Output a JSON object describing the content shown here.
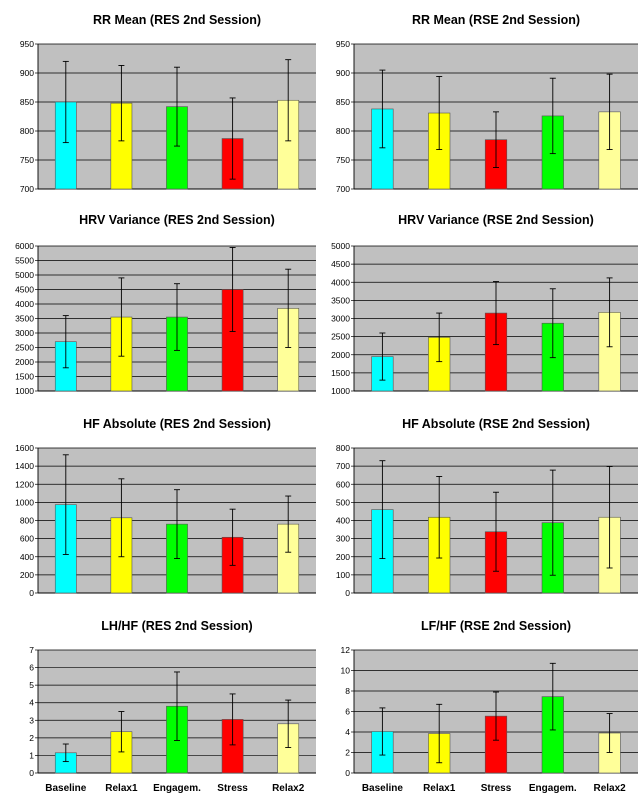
{
  "chart_data": [
    {
      "type": "bar",
      "title": "RR Mean (RES 2nd Session)",
      "categories": [
        "Baseline",
        "Relax1",
        "Engagem.",
        "Stress",
        "Relax2"
      ],
      "values": [
        850,
        848,
        842,
        787,
        853
      ],
      "error": [
        70,
        65,
        68,
        70,
        70
      ],
      "colors": [
        "#00ffff",
        "#ffff00",
        "#00ff00",
        "#ff0000",
        "#ffff99"
      ],
      "ylim": [
        700,
        950
      ],
      "yticks": [
        700,
        750,
        800,
        850,
        900,
        950
      ],
      "show_categories": false
    },
    {
      "type": "bar",
      "title": "RR Mean (RSE 2nd Session)",
      "categories": [
        "Baseline",
        "Relax1",
        "Stress",
        "Engagem.",
        "Relax2"
      ],
      "values": [
        838,
        831,
        785,
        826,
        833
      ],
      "error": [
        67,
        63,
        48,
        65,
        65
      ],
      "colors": [
        "#00ffff",
        "#ffff00",
        "#ff0000",
        "#00ff00",
        "#ffff99"
      ],
      "ylim": [
        700,
        950
      ],
      "yticks": [
        700,
        750,
        800,
        850,
        900,
        950
      ],
      "show_categories": false
    },
    {
      "type": "bar",
      "title": "HRV Variance (RES 2nd Session)",
      "categories": [
        "Baseline",
        "Relax1",
        "Engagem.",
        "Stress",
        "Relax2"
      ],
      "values": [
        2700,
        3550,
        3550,
        4500,
        3850
      ],
      "error": [
        900,
        1350,
        1150,
        1450,
        1350
      ],
      "colors": [
        "#00ffff",
        "#ffff00",
        "#00ff00",
        "#ff0000",
        "#ffff99"
      ],
      "ylim": [
        1000,
        6000
      ],
      "yticks": [
        1000,
        1500,
        2000,
        2500,
        3000,
        3500,
        4000,
        4500,
        5000,
        5500,
        6000
      ],
      "show_categories": false
    },
    {
      "type": "bar",
      "title": "HRV Variance (RSE 2nd Session)",
      "categories": [
        "Baseline",
        "Relax1",
        "Stress",
        "Engagem.",
        "Relax2"
      ],
      "values": [
        1950,
        2480,
        3150,
        2870,
        3170
      ],
      "error": [
        650,
        670,
        870,
        950,
        950
      ],
      "colors": [
        "#00ffff",
        "#ffff00",
        "#ff0000",
        "#00ff00",
        "#ffff99"
      ],
      "ylim": [
        1000,
        5000
      ],
      "yticks": [
        1000,
        1500,
        2000,
        2500,
        3000,
        3500,
        4000,
        4500,
        5000
      ],
      "show_categories": false
    },
    {
      "type": "bar",
      "title": "HF Absolute (RES 2nd Session)",
      "categories": [
        "Baseline",
        "Relax1",
        "Engagem.",
        "Stress",
        "Relax2"
      ],
      "values": [
        975,
        830,
        760,
        615,
        760
      ],
      "error": [
        550,
        430,
        380,
        310,
        310
      ],
      "colors": [
        "#00ffff",
        "#ffff00",
        "#00ff00",
        "#ff0000",
        "#ffff99"
      ],
      "ylim": [
        0,
        1600
      ],
      "yticks": [
        0,
        200,
        400,
        600,
        800,
        1000,
        1200,
        1400,
        1600
      ],
      "show_categories": false
    },
    {
      "type": "bar",
      "title": "HF Absolute (RSE 2nd Session)",
      "categories": [
        "Baseline",
        "Relax1",
        "Stress",
        "Engagem.",
        "Relax2"
      ],
      "values": [
        460,
        418,
        338,
        388,
        418
      ],
      "error": [
        270,
        225,
        218,
        290,
        280
      ],
      "colors": [
        "#00ffff",
        "#ffff00",
        "#ff0000",
        "#00ff00",
        "#ffff99"
      ],
      "ylim": [
        0,
        800
      ],
      "yticks": [
        0,
        100,
        200,
        300,
        400,
        500,
        600,
        700,
        800
      ],
      "show_categories": false
    },
    {
      "type": "bar",
      "title": "LH/HF (RES 2nd Session)",
      "categories": [
        "Baseline",
        "Relax1",
        "Engagem.",
        "Stress",
        "Relax2"
      ],
      "values": [
        1.15,
        2.35,
        3.8,
        3.05,
        2.8
      ],
      "error": [
        0.5,
        1.15,
        1.95,
        1.45,
        1.35
      ],
      "colors": [
        "#00ffff",
        "#ffff00",
        "#00ff00",
        "#ff0000",
        "#ffff99"
      ],
      "ylim": [
        0,
        7
      ],
      "yticks": [
        0,
        1,
        2,
        3,
        4,
        5,
        6,
        7
      ],
      "show_categories": true
    },
    {
      "type": "bar",
      "title": "LF/HF (RSE 2nd Session)",
      "categories": [
        "Baseline",
        "Relax1",
        "Stress",
        "Engagem.",
        "Relax2"
      ],
      "values": [
        4.05,
        3.85,
        5.55,
        7.45,
        3.9
      ],
      "error": [
        2.3,
        2.85,
        2.35,
        3.25,
        1.9
      ],
      "colors": [
        "#00ffff",
        "#ffff00",
        "#ff0000",
        "#00ff00",
        "#ffff99"
      ],
      "ylim": [
        0,
        12
      ],
      "yticks": [
        0,
        2,
        4,
        6,
        8,
        10,
        12
      ],
      "show_categories": true
    }
  ],
  "style": {
    "plot_background": "#c0c0c0",
    "gridline_color": "#000000",
    "bar_outline": "#555555",
    "error_bar_color": "#000000"
  }
}
